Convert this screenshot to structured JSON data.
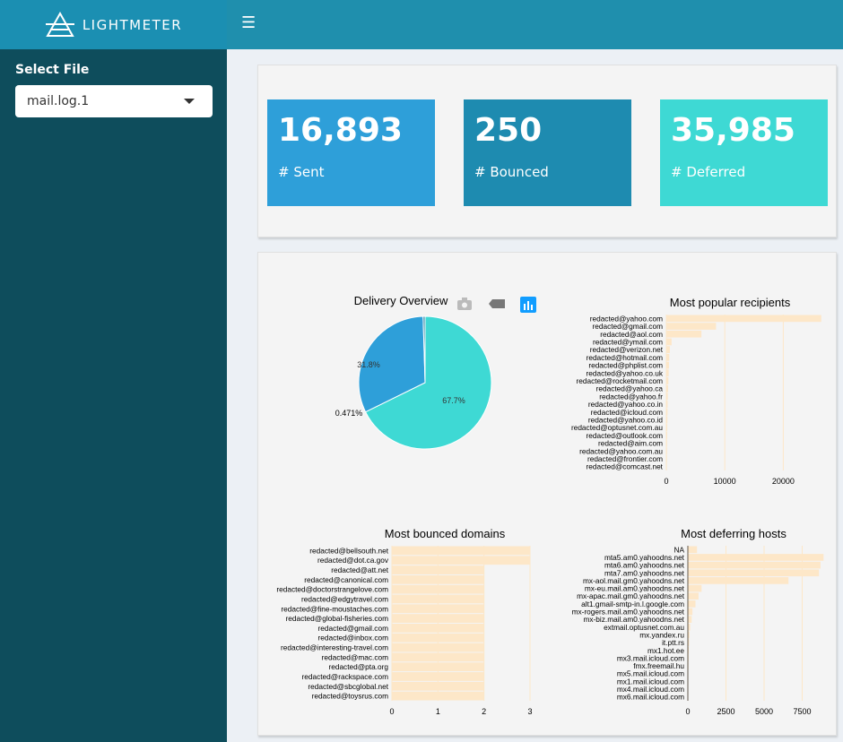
{
  "app": {
    "brand": "LIGHTMETER"
  },
  "sidebar": {
    "select_label": "Select File",
    "selected_file": "mail.log.1"
  },
  "stats": [
    {
      "value": "16,893",
      "label": "# Sent",
      "color": "#2e9fd9"
    },
    {
      "value": "250",
      "label": "# Bounced",
      "color": "#1e8bb0"
    },
    {
      "value": "35,985",
      "label": "# Deferred",
      "color": "#3ed9d4"
    }
  ],
  "chart_data": [
    {
      "type": "pie",
      "title": "Delivery Overview",
      "slices": [
        {
          "label": "67.7%",
          "value": 67.7,
          "color": "#3ed9d4"
        },
        {
          "label": "31.8%",
          "value": 31.8,
          "color": "#2e9fd9"
        },
        {
          "label": "0.471%",
          "value": 0.471,
          "color": "#1e7d9e"
        }
      ]
    },
    {
      "type": "bar",
      "title": "Most popular recipients",
      "orientation": "horizontal",
      "categories": [
        "redacted@yahoo.com",
        "redacted@gmail.com",
        "redacted@aol.com",
        "redacted@ymail.com",
        "redacted@verizon.net",
        "redacted@hotmail.com",
        "redacted@phplist.com",
        "redacted@yahoo.co.uk",
        "redacted@rocketmail.com",
        "redacted@yahoo.ca",
        "redacted@yahoo.fr",
        "redacted@yahoo.co.in",
        "redacted@icloud.com",
        "redacted@yahoo.co.id",
        "redacted@optusnet.com.au",
        "redacted@outlook.com",
        "redacted@aim.com",
        "redacted@yahoo.com.au",
        "redacted@frontier.com",
        "redacted@comcast.net"
      ],
      "values": [
        26500,
        8500,
        6000,
        900,
        600,
        500,
        450,
        400,
        350,
        300,
        250,
        220,
        200,
        180,
        160,
        150,
        130,
        120,
        110,
        100
      ],
      "xticks": [
        "0",
        "10000",
        "20000"
      ],
      "xlim": [
        0,
        27000
      ]
    },
    {
      "type": "bar",
      "title": "Most bounced domains",
      "orientation": "horizontal",
      "categories": [
        "redacted@bellsouth.net",
        "redacted@dot.ca.gov",
        "redacted@att.net",
        "redacted@canonical.com",
        "redacted@doctorstrangelove.com",
        "redacted@edgytravel.com",
        "redacted@fine-moustaches.com",
        "redacted@global-fisheries.com",
        "redacted@gmail.com",
        "redacted@inbox.com",
        "redacted@interesting-travel.com",
        "redacted@mac.com",
        "redacted@pta.org",
        "redacted@rackspace.com",
        "redacted@sbcglobal.net",
        "redacted@toysrus.com"
      ],
      "values": [
        3,
        3,
        2,
        2,
        2,
        2,
        2,
        2,
        2,
        2,
        2,
        2,
        2,
        2,
        2,
        2
      ],
      "xticks": [
        "0",
        "1",
        "2",
        "3"
      ],
      "xlim": [
        0,
        3
      ]
    },
    {
      "type": "bar",
      "title": "Most deferring hosts",
      "orientation": "horizontal",
      "categories": [
        "NA",
        "mta5.am0.yahoodns.net",
        "mta6.am0.yahoodns.net",
        "mta7.am0.yahoodns.net",
        "mx-aol.mail.gm0.yahoodns.net",
        "mx-eu.mail.am0.yahoodns.net",
        "mx-apac.mail.gm0.yahoodns.net",
        "alt1.gmail-smtp-in.l.google.com",
        "mx-rogers.mail.am0.yahoodns.net",
        "mx-biz.mail.am0.yahoodns.net",
        "extmail.optusnet.com.au",
        "mx.yandex.ru",
        "it.ptt.rs",
        "mx1.hot.ee",
        "mx3.mail.icloud.com",
        "fmx.freemail.hu",
        "mx5.mail.icloud.com",
        "mx1.mail.icloud.com",
        "mx4.mail.icloud.com",
        "mx6.mail.icloud.com"
      ],
      "values": [
        600,
        8900,
        8700,
        8600,
        6600,
        900,
        700,
        500,
        300,
        250,
        150,
        100,
        80,
        60,
        50,
        40,
        30,
        25,
        20,
        15
      ],
      "xticks": [
        "0",
        "2500",
        "5000",
        "7500"
      ],
      "xlim": [
        0,
        9000
      ]
    }
  ]
}
